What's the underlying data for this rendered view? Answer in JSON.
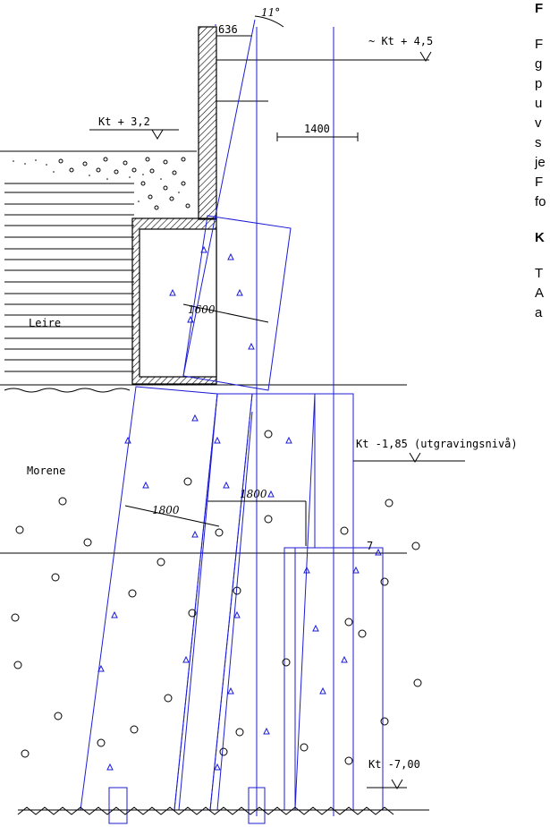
{
  "labels": {
    "angle": "11°",
    "dim_636": "636",
    "kt_top": "~ Kt + 4,5",
    "kt_32": "Kt + 3,2",
    "dim_1400": "1400",
    "dim_1600": "1600",
    "dim_1800a": "1800",
    "dim_1800b": "1800",
    "leire": "Leire",
    "morene": "Morene",
    "kt_185": "Kt -1,85 (utgravingsnivå)",
    "kt_700": "Kt -7,00",
    "mark_7": "7"
  },
  "side_text": {
    "heading1": "F",
    "para": [
      "F",
      "g",
      "p",
      "u",
      "v",
      "s",
      "je",
      "F",
      "fo"
    ],
    "heading2": "K",
    "para2": [
      "T",
      "A",
      "a"
    ]
  },
  "colors": {
    "line": "#000000",
    "blue": "#1c1cd6"
  }
}
